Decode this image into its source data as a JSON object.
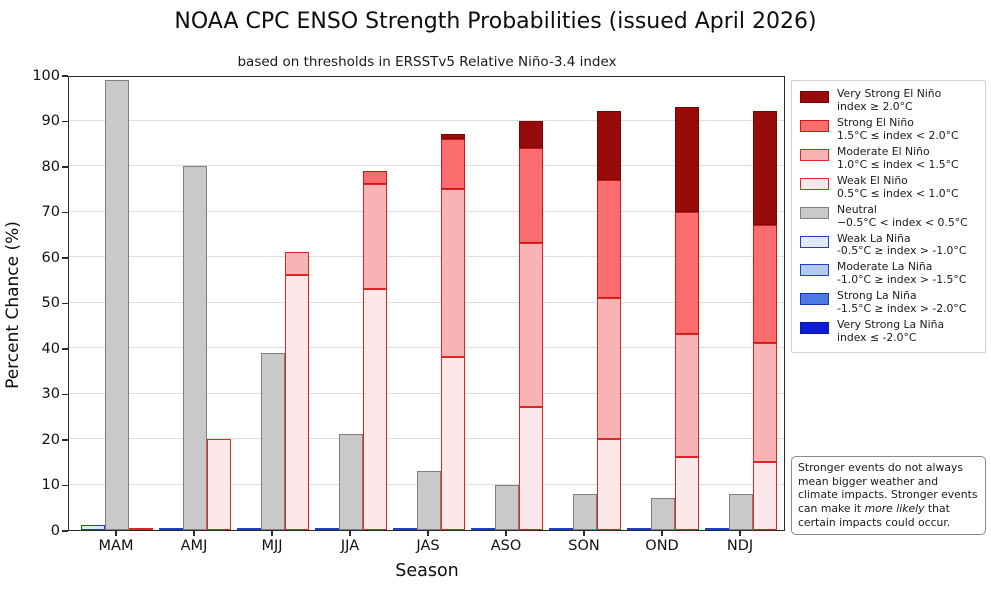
{
  "chart_data": {
    "type": "bar",
    "variant": "grouped-stacked-probability-bars",
    "title": "NOAA CPC ENSO Strength Probabilities (issued April 2026)",
    "subtitle": "based on thresholds in ERSSTv5 Relative Niño-3.4 index",
    "xlabel": "Season",
    "ylabel": "Percent Chance (%)",
    "ylim": [
      0,
      100
    ],
    "yticks": [
      0,
      10,
      20,
      30,
      40,
      50,
      60,
      70,
      80,
      90,
      100
    ],
    "grid": "horizontal",
    "legend_position": "outside-right",
    "categories": [
      "MAM",
      "AMJ",
      "MJJ",
      "JJA",
      "JAS",
      "ASO",
      "SON",
      "OND",
      "NDJ"
    ],
    "series": [
      {
        "key": "very_strong_el_nino",
        "name": "Very Strong El Niño",
        "values": [
          0,
          0,
          0,
          0,
          1,
          6,
          15,
          23,
          25
        ]
      },
      {
        "key": "strong_el_nino",
        "name": "Strong El Niño",
        "values": [
          0,
          0,
          0,
          3,
          11,
          21,
          26,
          27,
          26
        ]
      },
      {
        "key": "moderate_el_nino",
        "name": "Moderate El Niño",
        "values": [
          0,
          0,
          5,
          23,
          37,
          36,
          31,
          27,
          26
        ]
      },
      {
        "key": "weak_el_nino",
        "name": "Weak El Niño",
        "values": [
          0,
          20,
          56,
          53,
          38,
          27,
          20,
          16,
          15
        ]
      },
      {
        "key": "neutral",
        "name": "Neutral",
        "values": [
          99,
          80,
          39,
          21,
          13,
          10,
          8,
          7,
          8
        ]
      },
      {
        "key": "weak_la_nina",
        "name": "Weak La Niña",
        "values": [
          1,
          0,
          0,
          0,
          0,
          0,
          0,
          0,
          0
        ]
      },
      {
        "key": "moderate_la_nina",
        "name": "Moderate La Niña",
        "values": [
          0,
          0,
          0,
          0,
          0,
          0,
          0,
          0,
          0
        ]
      },
      {
        "key": "strong_la_nina",
        "name": "Strong La Niña",
        "values": [
          0,
          0,
          0,
          0,
          0,
          0,
          0,
          0,
          0
        ]
      },
      {
        "key": "very_strong_la_nina",
        "name": "Very Strong La Niña",
        "values": [
          0,
          0,
          0,
          0,
          0,
          0,
          0,
          0,
          0
        ]
      }
    ],
    "bar_groups": [
      {
        "name": "la-nina-bar",
        "stack_bottom_to_top": [
          "weak_la_nina",
          "moderate_la_nina",
          "strong_la_nina",
          "very_strong_la_nina"
        ]
      },
      {
        "name": "neutral-bar",
        "stack_bottom_to_top": [
          "neutral"
        ]
      },
      {
        "name": "el-nino-bar",
        "stack_bottom_to_top": [
          "weak_el_nino",
          "moderate_el_nino",
          "strong_el_nino",
          "very_strong_el_nino"
        ]
      }
    ]
  },
  "styles": {
    "very_strong_el_nino": {
      "fill": "#970b0b",
      "edge": "#7a0404"
    },
    "strong_el_nino": {
      "fill": "#f96d6e",
      "edge": "#d41414"
    },
    "moderate_el_nino": {
      "fill": "#f8b4b4",
      "edge": "#e02525"
    },
    "weak_el_nino": {
      "fill": "#fce8e8",
      "edge": "#e02525"
    },
    "neutral": {
      "fill": "#c9c9c9",
      "edge": "#7f7f7f"
    },
    "weak_la_nina": {
      "fill": "#e1eafa",
      "edge": "#1d40c0"
    },
    "moderate_la_nina": {
      "fill": "#b3cbf2",
      "edge": "#1d40c0"
    },
    "strong_la_nina": {
      "fill": "#4e79e4",
      "edge": "#1536b8"
    },
    "very_strong_la_nina": {
      "fill": "#0d1dd6",
      "edge": "#0a14a0"
    }
  },
  "legend": {
    "items": [
      {
        "key": "very_strong_el_nino",
        "label": "Very Strong El Niño",
        "range": "index ≥ 2.0°C"
      },
      {
        "key": "strong_el_nino",
        "label": "Strong El Niño",
        "range": "1.5°C ≤ index < 2.0°C"
      },
      {
        "key": "moderate_el_nino",
        "label": "Moderate El Niño",
        "range": "1.0°C ≤ index < 1.5°C"
      },
      {
        "key": "weak_el_nino",
        "label": "Weak El Niño",
        "range": "0.5°C ≤ index < 1.0°C"
      },
      {
        "key": "neutral",
        "label": "Neutral",
        "range": "−0.5°C < index < 0.5°C"
      },
      {
        "key": "weak_la_nina",
        "label": "Weak La Niña",
        "range": "-0.5°C ≥ index > -1.0°C"
      },
      {
        "key": "moderate_la_nina",
        "label": "Moderate La Niña",
        "range": "-1.0°C ≥ index > -1.5°C"
      },
      {
        "key": "strong_la_nina",
        "label": "Strong La Niña",
        "range": "-1.5°C ≥ index > -2.0°C"
      },
      {
        "key": "very_strong_la_nina",
        "label": "Very Strong La Niña",
        "range": "index ≤ -2.0°C"
      }
    ]
  },
  "note": {
    "before": "Stronger events do not always mean bigger weather and climate impacts. Stronger events can make it ",
    "italic": "more likely",
    "after": " that certain impacts could occur."
  }
}
